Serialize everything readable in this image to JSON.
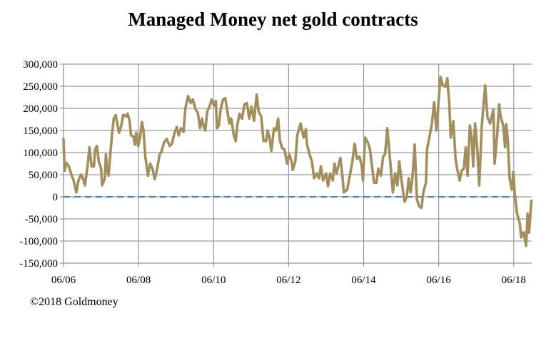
{
  "chart_data": {
    "type": "line",
    "title": "Managed Money net gold contracts",
    "xlabel": "",
    "ylabel": "",
    "xlim": [
      2006.5,
      2018.98
    ],
    "ylim": [
      -150000,
      300000
    ],
    "grid": true,
    "legend": "none",
    "y_ticks": [
      {
        "value": 300000,
        "label": "300,000"
      },
      {
        "value": 250000,
        "label": "250,000"
      },
      {
        "value": 200000,
        "label": "200,000"
      },
      {
        "value": 150000,
        "label": "150,000"
      },
      {
        "value": 100000,
        "label": "100,000"
      },
      {
        "value": 50000,
        "label": "50,000"
      },
      {
        "value": 0,
        "label": "0"
      },
      {
        "value": -50000,
        "label": "-50,000"
      },
      {
        "value": -100000,
        "label": "-100,000"
      },
      {
        "value": -150000,
        "label": "-150,000"
      }
    ],
    "x_ticks": [
      {
        "value": 2006.5,
        "label": "06/06"
      },
      {
        "value": 2008.5,
        "label": "06/08"
      },
      {
        "value": 2010.5,
        "label": "06/10"
      },
      {
        "value": 2012.5,
        "label": "06/12"
      },
      {
        "value": 2014.5,
        "label": "06/14"
      },
      {
        "value": 2016.5,
        "label": "06/16"
      },
      {
        "value": 2018.5,
        "label": "06/18"
      }
    ],
    "series": [
      {
        "name": "Managed Money net gold contracts",
        "color": "#a38f5e",
        "points": [
          [
            2006.5,
            131000
          ],
          [
            2006.53,
            59000
          ],
          [
            2006.58,
            77000
          ],
          [
            2006.64,
            69000
          ],
          [
            2006.7,
            53000
          ],
          [
            2006.77,
            37000
          ],
          [
            2006.84,
            10000
          ],
          [
            2006.9,
            37000
          ],
          [
            2006.96,
            50000
          ],
          [
            2007.02,
            42000
          ],
          [
            2007.07,
            26000
          ],
          [
            2007.14,
            69000
          ],
          [
            2007.19,
            112000
          ],
          [
            2007.25,
            69000
          ],
          [
            2007.31,
            69000
          ],
          [
            2007.34,
            107000
          ],
          [
            2007.39,
            115000
          ],
          [
            2007.44,
            80000
          ],
          [
            2007.5,
            64000
          ],
          [
            2007.53,
            26000
          ],
          [
            2007.6,
            42000
          ],
          [
            2007.63,
            96000
          ],
          [
            2007.66,
            64000
          ],
          [
            2007.7,
            48000
          ],
          [
            2007.79,
            139000
          ],
          [
            2007.84,
            177000
          ],
          [
            2007.89,
            185000
          ],
          [
            2007.98,
            145000
          ],
          [
            2008.04,
            161000
          ],
          [
            2008.09,
            185000
          ],
          [
            2008.17,
            182000
          ],
          [
            2008.21,
            188000
          ],
          [
            2008.26,
            172000
          ],
          [
            2008.3,
            139000
          ],
          [
            2008.36,
            137000
          ],
          [
            2008.4,
            118000
          ],
          [
            2008.44,
            145000
          ],
          [
            2008.49,
            115000
          ],
          [
            2008.54,
            134000
          ],
          [
            2008.59,
            169000
          ],
          [
            2008.63,
            150000
          ],
          [
            2008.68,
            91000
          ],
          [
            2008.75,
            48000
          ],
          [
            2008.81,
            75000
          ],
          [
            2008.87,
            64000
          ],
          [
            2008.93,
            40000
          ],
          [
            2009.0,
            64000
          ],
          [
            2009.06,
            96000
          ],
          [
            2009.11,
            102000
          ],
          [
            2009.18,
            123000
          ],
          [
            2009.25,
            131000
          ],
          [
            2009.33,
            115000
          ],
          [
            2009.39,
            120000
          ],
          [
            2009.46,
            145000
          ],
          [
            2009.52,
            158000
          ],
          [
            2009.57,
            139000
          ],
          [
            2009.63,
            155000
          ],
          [
            2009.7,
            147000
          ],
          [
            2009.75,
            201000
          ],
          [
            2009.82,
            228000
          ],
          [
            2009.89,
            212000
          ],
          [
            2009.95,
            220000
          ],
          [
            2010.02,
            198000
          ],
          [
            2010.08,
            190000
          ],
          [
            2010.14,
            155000
          ],
          [
            2010.19,
            177000
          ],
          [
            2010.25,
            155000
          ],
          [
            2010.28,
            150000
          ],
          [
            2010.33,
            193000
          ],
          [
            2010.4,
            206000
          ],
          [
            2010.45,
            220000
          ],
          [
            2010.51,
            206000
          ],
          [
            2010.56,
            217000
          ],
          [
            2010.59,
            155000
          ],
          [
            2010.64,
            161000
          ],
          [
            2010.69,
            198000
          ],
          [
            2010.75,
            220000
          ],
          [
            2010.81,
            223000
          ],
          [
            2010.86,
            198000
          ],
          [
            2010.92,
            166000
          ],
          [
            2010.97,
            177000
          ],
          [
            2011.04,
            139000
          ],
          [
            2011.09,
            126000
          ],
          [
            2011.13,
            161000
          ],
          [
            2011.19,
            188000
          ],
          [
            2011.26,
            177000
          ],
          [
            2011.32,
            209000
          ],
          [
            2011.39,
            212000
          ],
          [
            2011.45,
            177000
          ],
          [
            2011.51,
            204000
          ],
          [
            2011.58,
            172000
          ],
          [
            2011.62,
            209000
          ],
          [
            2011.65,
            231000
          ],
          [
            2011.7,
            193000
          ],
          [
            2011.77,
            182000
          ],
          [
            2011.83,
            126000
          ],
          [
            2011.9,
            126000
          ],
          [
            2011.94,
            150000
          ],
          [
            2011.99,
            134000
          ],
          [
            2012.04,
            104000
          ],
          [
            2012.11,
            155000
          ],
          [
            2012.17,
            150000
          ],
          [
            2012.22,
            177000
          ],
          [
            2012.27,
            126000
          ],
          [
            2012.33,
            110000
          ],
          [
            2012.39,
            107000
          ],
          [
            2012.46,
            75000
          ],
          [
            2012.52,
            96000
          ],
          [
            2012.58,
            80000
          ],
          [
            2012.61,
            61000
          ],
          [
            2012.68,
            80000
          ],
          [
            2012.73,
            139000
          ],
          [
            2012.82,
            166000
          ],
          [
            2012.9,
            134000
          ],
          [
            2012.96,
            153000
          ],
          [
            2012.99,
            118000
          ],
          [
            2013.06,
            96000
          ],
          [
            2013.12,
            80000
          ],
          [
            2013.18,
            42000
          ],
          [
            2013.25,
            53000
          ],
          [
            2013.31,
            42000
          ],
          [
            2013.36,
            69000
          ],
          [
            2013.42,
            37000
          ],
          [
            2013.5,
            53000
          ],
          [
            2013.55,
            24000
          ],
          [
            2013.61,
            53000
          ],
          [
            2013.68,
            37000
          ],
          [
            2013.72,
            75000
          ],
          [
            2013.78,
            53000
          ],
          [
            2013.83,
            72000
          ],
          [
            2013.88,
            88000
          ],
          [
            2013.93,
            50000
          ],
          [
            2013.97,
            10000
          ],
          [
            2014.06,
            16000
          ],
          [
            2014.13,
            48000
          ],
          [
            2014.2,
            80000
          ],
          [
            2014.26,
            120000
          ],
          [
            2014.32,
            86000
          ],
          [
            2014.39,
            91000
          ],
          [
            2014.45,
            69000
          ],
          [
            2014.48,
            37000
          ],
          [
            2014.54,
            134000
          ],
          [
            2014.61,
            123000
          ],
          [
            2014.67,
            107000
          ],
          [
            2014.73,
            64000
          ],
          [
            2014.78,
            32000
          ],
          [
            2014.84,
            32000
          ],
          [
            2014.89,
            64000
          ],
          [
            2014.96,
            48000
          ],
          [
            2015.02,
            91000
          ],
          [
            2015.07,
            96000
          ],
          [
            2015.13,
            155000
          ],
          [
            2015.18,
            107000
          ],
          [
            2015.24,
            48000
          ],
          [
            2015.28,
            10000
          ],
          [
            2015.34,
            53000
          ],
          [
            2015.4,
            26000
          ],
          [
            2015.45,
            80000
          ],
          [
            2015.51,
            37000
          ],
          [
            2015.59,
            -11000
          ],
          [
            2015.65,
            0
          ],
          [
            2015.7,
            42000
          ],
          [
            2015.75,
            10000
          ],
          [
            2015.8,
            42000
          ],
          [
            2015.86,
            118000
          ],
          [
            2015.92,
            -6000
          ],
          [
            2015.98,
            -22000
          ],
          [
            2016.04,
            -25000
          ],
          [
            2016.09,
            10000
          ],
          [
            2016.16,
            32000
          ],
          [
            2016.19,
            107000
          ],
          [
            2016.25,
            134000
          ],
          [
            2016.32,
            166000
          ],
          [
            2016.38,
            214000
          ],
          [
            2016.44,
            150000
          ],
          [
            2016.51,
            231000
          ],
          [
            2016.55,
            271000
          ],
          [
            2016.61,
            252000
          ],
          [
            2016.68,
            249000
          ],
          [
            2016.73,
            268000
          ],
          [
            2016.78,
            214000
          ],
          [
            2016.82,
            134000
          ],
          [
            2016.89,
            171000
          ],
          [
            2016.95,
            86000
          ],
          [
            2016.99,
            64000
          ],
          [
            2017.06,
            37000
          ],
          [
            2017.11,
            59000
          ],
          [
            2017.17,
            64000
          ],
          [
            2017.22,
            112000
          ],
          [
            2017.27,
            48000
          ],
          [
            2017.33,
            161000
          ],
          [
            2017.38,
            134000
          ],
          [
            2017.42,
            69000
          ],
          [
            2017.47,
            166000
          ],
          [
            2017.53,
            107000
          ],
          [
            2017.58,
            26000
          ],
          [
            2017.65,
            161000
          ],
          [
            2017.74,
            252000
          ],
          [
            2017.8,
            180000
          ],
          [
            2017.87,
            166000
          ],
          [
            2017.96,
            198000
          ],
          [
            2017.99,
            75000
          ],
          [
            2018.06,
            139000
          ],
          [
            2018.11,
            209000
          ],
          [
            2018.15,
            182000
          ],
          [
            2018.22,
            161000
          ],
          [
            2018.27,
            112000
          ],
          [
            2018.3,
            164000
          ],
          [
            2018.34,
            131000
          ],
          [
            2018.39,
            42000
          ],
          [
            2018.45,
            16000
          ],
          [
            2018.49,
            56000
          ],
          [
            2018.53,
            5000
          ],
          [
            2018.59,
            -38000
          ],
          [
            2018.66,
            -60000
          ],
          [
            2018.7,
            -92000
          ],
          [
            2018.74,
            -81000
          ],
          [
            2018.77,
            -81000
          ],
          [
            2018.83,
            -111000
          ],
          [
            2018.87,
            -38000
          ],
          [
            2018.91,
            -81000
          ],
          [
            2018.97,
            -9000
          ]
        ]
      },
      {
        "name": "Zero line",
        "color": "#4f81bd",
        "dashed": true,
        "points": [
          [
            2006.5,
            0
          ],
          [
            2018.59,
            0
          ]
        ]
      }
    ]
  },
  "footer": {
    "copyright": "©2018 Goldmoney"
  }
}
